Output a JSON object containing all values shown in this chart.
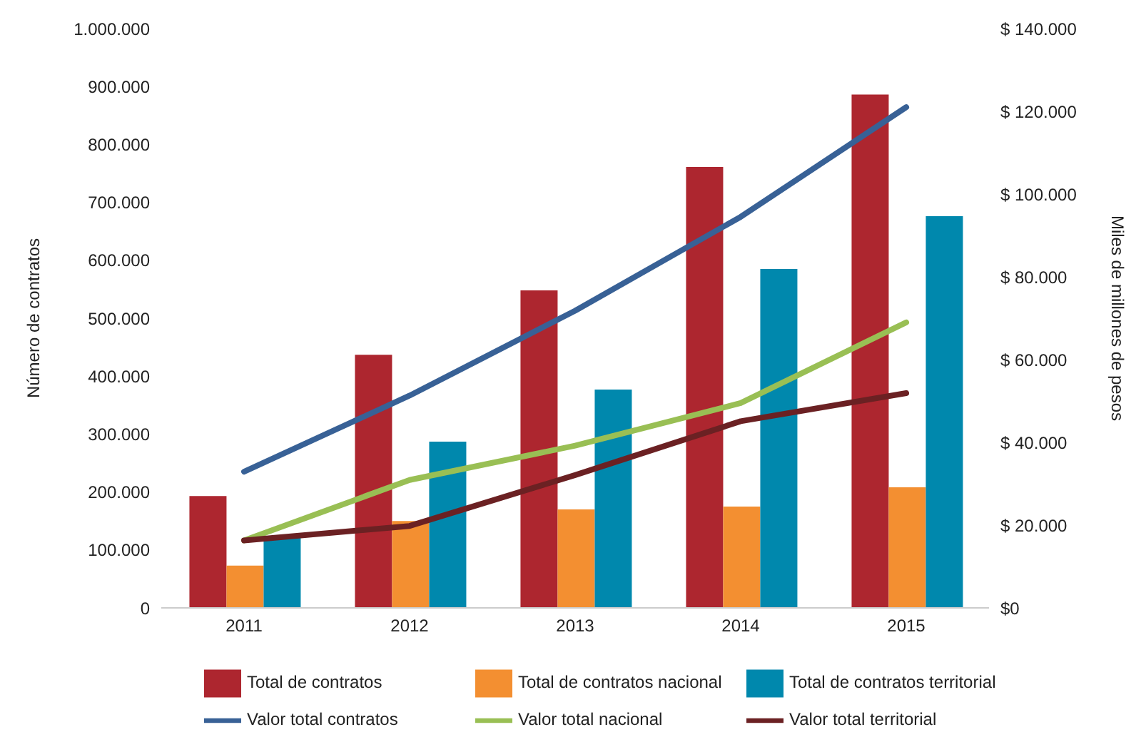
{
  "chart_data": {
    "type": "bar",
    "categories": [
      "2011",
      "2012",
      "2013",
      "2014",
      "2015"
    ],
    "ylabel": "Número de contratos",
    "y2label": "Miles de millones de pesos",
    "series": [
      {
        "name": "Total de contratos",
        "color": "#ad262f",
        "values": [
          193000,
          437000,
          548000,
          761000,
          886000
        ]
      },
      {
        "name": "Total de contratos nacional",
        "color": "#f38f31",
        "values": [
          73000,
          150000,
          170000,
          175000,
          208000
        ]
      },
      {
        "name": "Total de contratos territorial",
        "color": "#0088ad",
        "values": [
          121000,
          287000,
          377000,
          585000,
          676000
        ]
      },
      {
        "name": "Valor total contratos",
        "type": "line",
        "axis": "y2",
        "color": "#386196",
        "values": [
          32900,
          51300,
          71800,
          94500,
          121000
        ]
      },
      {
        "name": "Valor total nacional",
        "type": "line",
        "axis": "y2",
        "color": "#99bf54",
        "values": [
          16300,
          30900,
          39200,
          49500,
          69000
        ]
      },
      {
        "name": "Valor total territorial",
        "type": "line",
        "axis": "y2",
        "color": "#6b2123",
        "values": [
          16300,
          19800,
          32100,
          45100,
          51900
        ]
      }
    ],
    "ylim": [
      0,
      1000000
    ],
    "yticks": [
      {
        "value": 0,
        "label": "0"
      },
      {
        "value": 100000,
        "label": "100.000"
      },
      {
        "value": 200000,
        "label": "200.000"
      },
      {
        "value": 300000,
        "label": "300.000"
      },
      {
        "value": 400000,
        "label": "400.000"
      },
      {
        "value": 500000,
        "label": "500.000"
      },
      {
        "value": 600000,
        "label": "600.000"
      },
      {
        "value": 700000,
        "label": "700.000"
      },
      {
        "value": 800000,
        "label": "800.000"
      },
      {
        "value": 900000,
        "label": "900.000"
      },
      {
        "value": 1000000,
        "label": "1.000.000"
      }
    ],
    "y2lim": [
      0,
      140000
    ],
    "y2ticks": [
      {
        "value": 0,
        "label": "$0"
      },
      {
        "value": 20000,
        "label": "$ 20.000"
      },
      {
        "value": 40000,
        "label": "$ 40.000"
      },
      {
        "value": 60000,
        "label": "$ 60.000"
      },
      {
        "value": 80000,
        "label": "$ 80.000"
      },
      {
        "value": 100000,
        "label": "$ 100.000"
      },
      {
        "value": 120000,
        "label": "$ 120.000"
      },
      {
        "value": 140000,
        "label": "$ 140.000"
      }
    ],
    "grid": false,
    "legend": "bottom",
    "marker": "none"
  }
}
